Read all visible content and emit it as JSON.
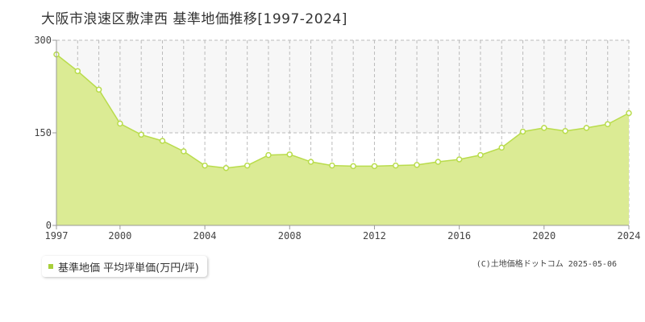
{
  "page": {
    "title": "大阪市浪速区敷津西 基準地価推移[1997-2024]",
    "copyright": "(C)土地価格ドットコム 2025-05-06"
  },
  "legend": {
    "label": "基準地価 平均坪単価(万円/坪)",
    "swatch_color": "#a8cf3a"
  },
  "colors": {
    "fill": "#dbeb94",
    "line": "#b9dc4c",
    "marker_fill": "#ffffff",
    "grid": "#bbbbbb",
    "axis": "#999999",
    "band_alt": "#f7f7f7"
  },
  "chart_data": {
    "type": "area",
    "title": "",
    "xlabel": "",
    "ylabel": "",
    "x": [
      1997,
      1998,
      1999,
      2000,
      2001,
      2002,
      2003,
      2004,
      2005,
      2006,
      2007,
      2008,
      2009,
      2010,
      2011,
      2012,
      2013,
      2014,
      2015,
      2016,
      2017,
      2018,
      2019,
      2020,
      2021,
      2022,
      2023,
      2024
    ],
    "series": [
      {
        "name": "基準地価 平均坪単価(万円/坪)",
        "values": [
          277,
          250,
          220,
          165,
          147,
          137,
          120,
          97,
          93,
          97,
          114,
          115,
          103,
          97,
          96,
          96,
          97,
          98,
          103,
          107,
          114,
          126,
          152,
          158,
          153,
          158,
          164,
          182
        ]
      }
    ],
    "xlim": [
      1997,
      2024
    ],
    "ylim": [
      0,
      300
    ],
    "x_ticks": [
      "1997",
      "2000",
      "2004",
      "2008",
      "2012",
      "2016",
      "2020",
      "2024"
    ],
    "y_ticks": [
      "0",
      "150",
      "300"
    ],
    "grid": true,
    "legend_position": "bottom-left"
  }
}
